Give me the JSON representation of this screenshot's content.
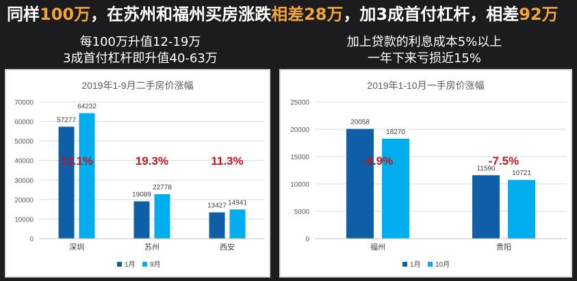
{
  "headline": {
    "parts": [
      {
        "text": "同样",
        "highlight": false
      },
      {
        "text": "100万",
        "highlight": true
      },
      {
        "text": "，在苏州和福州买房涨跌",
        "highlight": false
      },
      {
        "text": "相差28万",
        "highlight": true
      },
      {
        "text": "，加3成首付杠杆，相差",
        "highlight": false
      },
      {
        "text": "92万",
        "highlight": true
      }
    ]
  },
  "left": {
    "subtitle_line1": "每100万升值12-19万",
    "subtitle_line2": "3成首付杠杆即升值40-63万"
  },
  "right": {
    "subtitle_line1": "加上贷款的利息成本5%以上",
    "subtitle_line2": "一年下来亏损近15%"
  },
  "colors": {
    "highlight": "#f0a43a",
    "series1": "#0f5fa8",
    "series2": "#00aeef",
    "annotation": "#c0161c"
  },
  "chart_data": [
    {
      "type": "bar",
      "title": "2019年1-9月二手房价涨幅",
      "categories": [
        "深圳",
        "苏州",
        "西安"
      ],
      "series": [
        {
          "name": "1月",
          "values": [
            57277,
            19089,
            13427
          ]
        },
        {
          "name": "9月",
          "values": [
            64232,
            22778,
            14941
          ]
        }
      ],
      "ylim": [
        0,
        70000
      ],
      "yticks": [
        0,
        10000,
        20000,
        30000,
        40000,
        50000,
        60000,
        70000
      ],
      "annotations": [
        "12.1%",
        "19.3%",
        "11.3%"
      ],
      "legend": "bottom",
      "xlabel": "",
      "ylabel": ""
    },
    {
      "type": "bar",
      "title": "2019年1-10月一手房价涨幅",
      "categories": [
        "福州",
        "贵阳"
      ],
      "series": [
        {
          "name": "1月",
          "values": [
            20058,
            11590
          ]
        },
        {
          "name": "10月",
          "values": [
            18270,
            10721
          ]
        }
      ],
      "ylim": [
        0,
        25000
      ],
      "yticks": [
        0,
        5000,
        10000,
        15000,
        20000,
        25000
      ],
      "annotations": [
        "-8.9%",
        "-7.5%"
      ],
      "legend": "bottom",
      "xlabel": "",
      "ylabel": ""
    }
  ]
}
